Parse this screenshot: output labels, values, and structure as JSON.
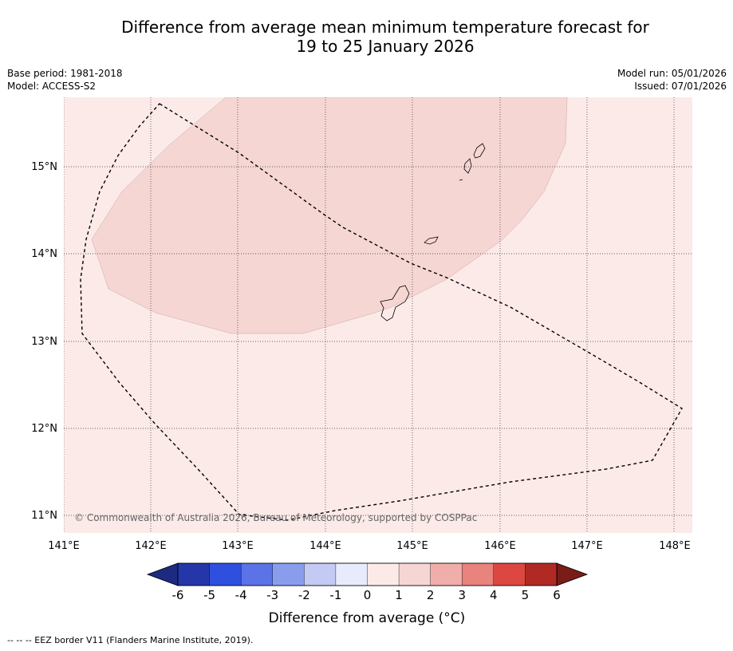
{
  "title": {
    "line1": "Difference from average mean minimum temperature forecast for",
    "line2": "19 to 25 January 2026"
  },
  "meta_left": {
    "base_period": "Base period: 1981-2018",
    "model": "Model: ACCESS-S2"
  },
  "meta_right": {
    "model_run": "Model run: 05/01/2026",
    "issued": "Issued: 07/01/2026"
  },
  "map": {
    "lon_labels": [
      "141°E",
      "142°E",
      "143°E",
      "144°E",
      "145°E",
      "146°E",
      "147°E",
      "148°E"
    ],
    "lat_labels": [
      "15°N",
      "14°N",
      "13°N",
      "12°N",
      "11°N"
    ],
    "background_color": "#fbeae8",
    "anomaly_color": "#f5d6d3",
    "copyright": "© Commonwealth of Australia 2026, Bureau of Meteorology, supported by COSPPac"
  },
  "colorbar": {
    "label": "Difference from average (°C)",
    "tick_labels": [
      "-6",
      "-5",
      "-4",
      "-3",
      "-2",
      "-1",
      "0",
      "1",
      "2",
      "3",
      "4",
      "5",
      "6"
    ],
    "colors": [
      "#2536a8",
      "#2f4fdf",
      "#5b73e6",
      "#8a9ded",
      "#c3caf4",
      "#e8ebfb",
      "#fbeae8",
      "#f5d6d3",
      "#efaeaa",
      "#e8837d",
      "#dc4841",
      "#b02a23"
    ],
    "under_color": "#1c2a80",
    "over_color": "#7a1c18"
  },
  "footer": {
    "legend_text": "--  --  -- EEZ border V11 (Flanders Marine Institute, 2019)."
  }
}
